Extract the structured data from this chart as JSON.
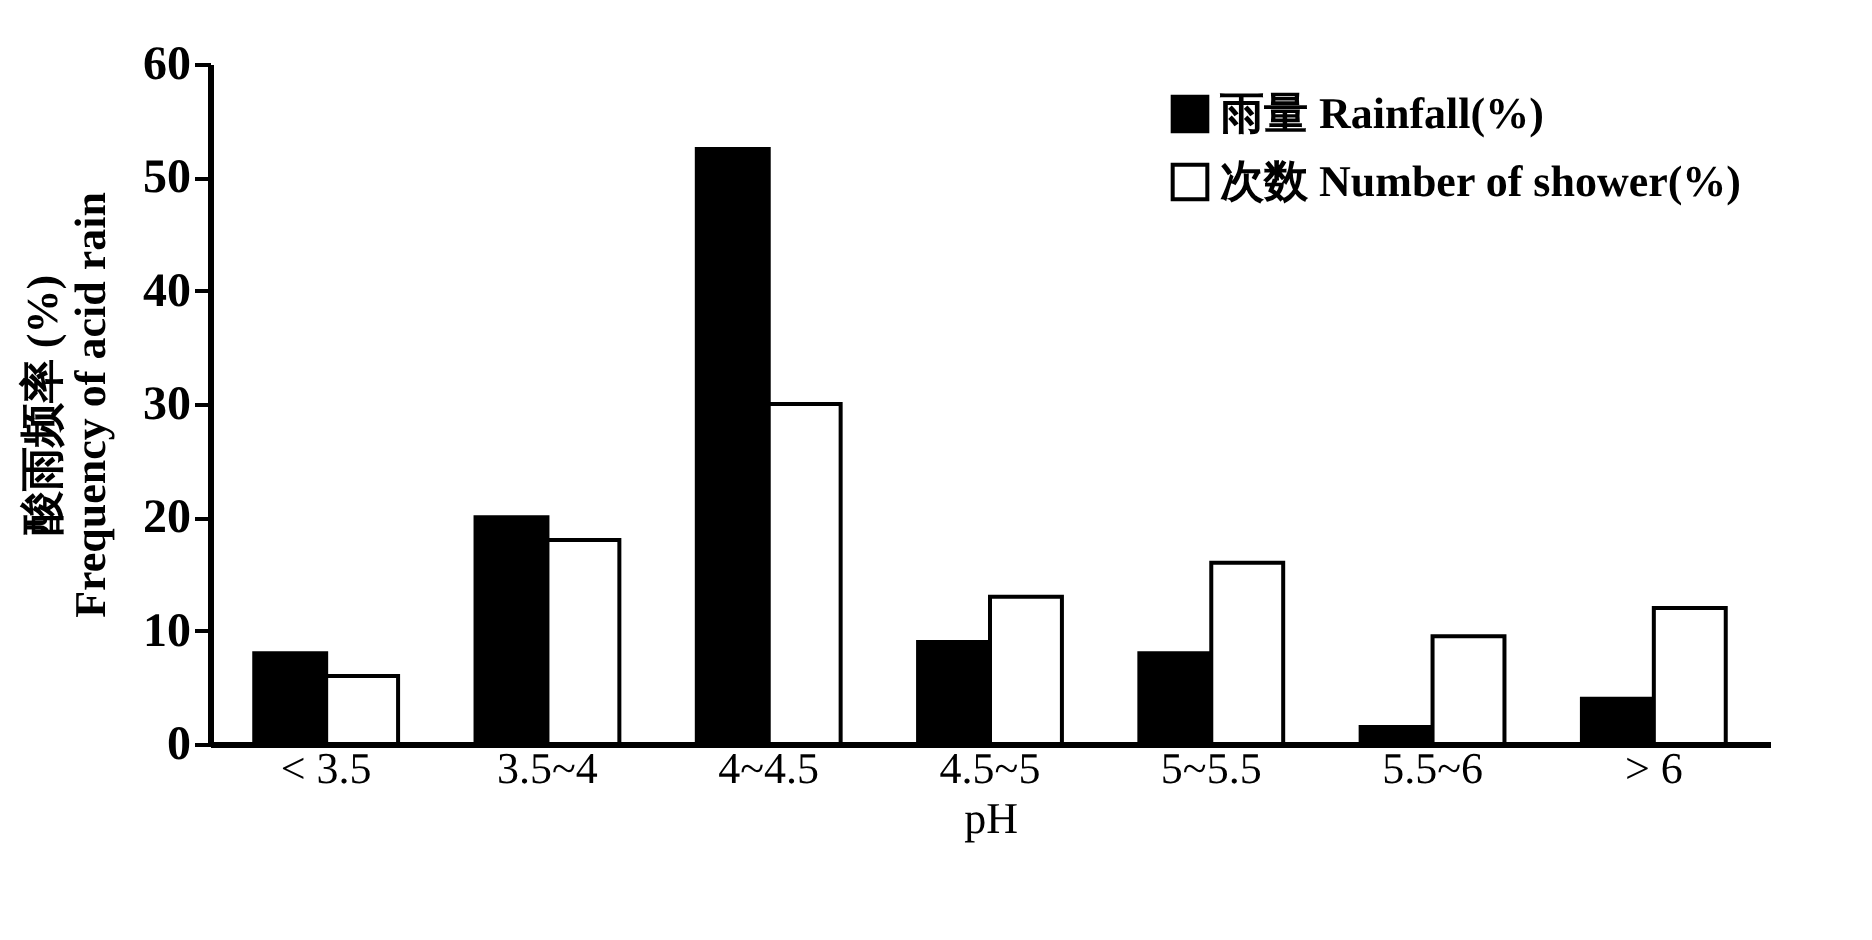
{
  "chart_data": {
    "type": "bar",
    "xlabel": "pH",
    "ylabel": "酸雨频率 (%)\nFrequency of acid rain",
    "categories": [
      "< 3.5",
      "3.5~4",
      "4~4.5",
      "4.5~5",
      "5~5.5",
      "5.5~6",
      "> 6"
    ],
    "series": [
      {
        "name": "雨量 Rainfall(%)",
        "color": "#000000",
        "values": [
          8,
          20,
          52.5,
          9,
          8,
          1.5,
          4
        ]
      },
      {
        "name": "次数 Number of shower(%)",
        "color": "#ffffff",
        "values": [
          6,
          18,
          30,
          13,
          16,
          9.5,
          12
        ]
      }
    ],
    "ylim": [
      0,
      60
    ],
    "yticks": [
      0,
      10,
      20,
      30,
      40,
      50,
      60
    ],
    "grid": false,
    "legend": "top right"
  }
}
